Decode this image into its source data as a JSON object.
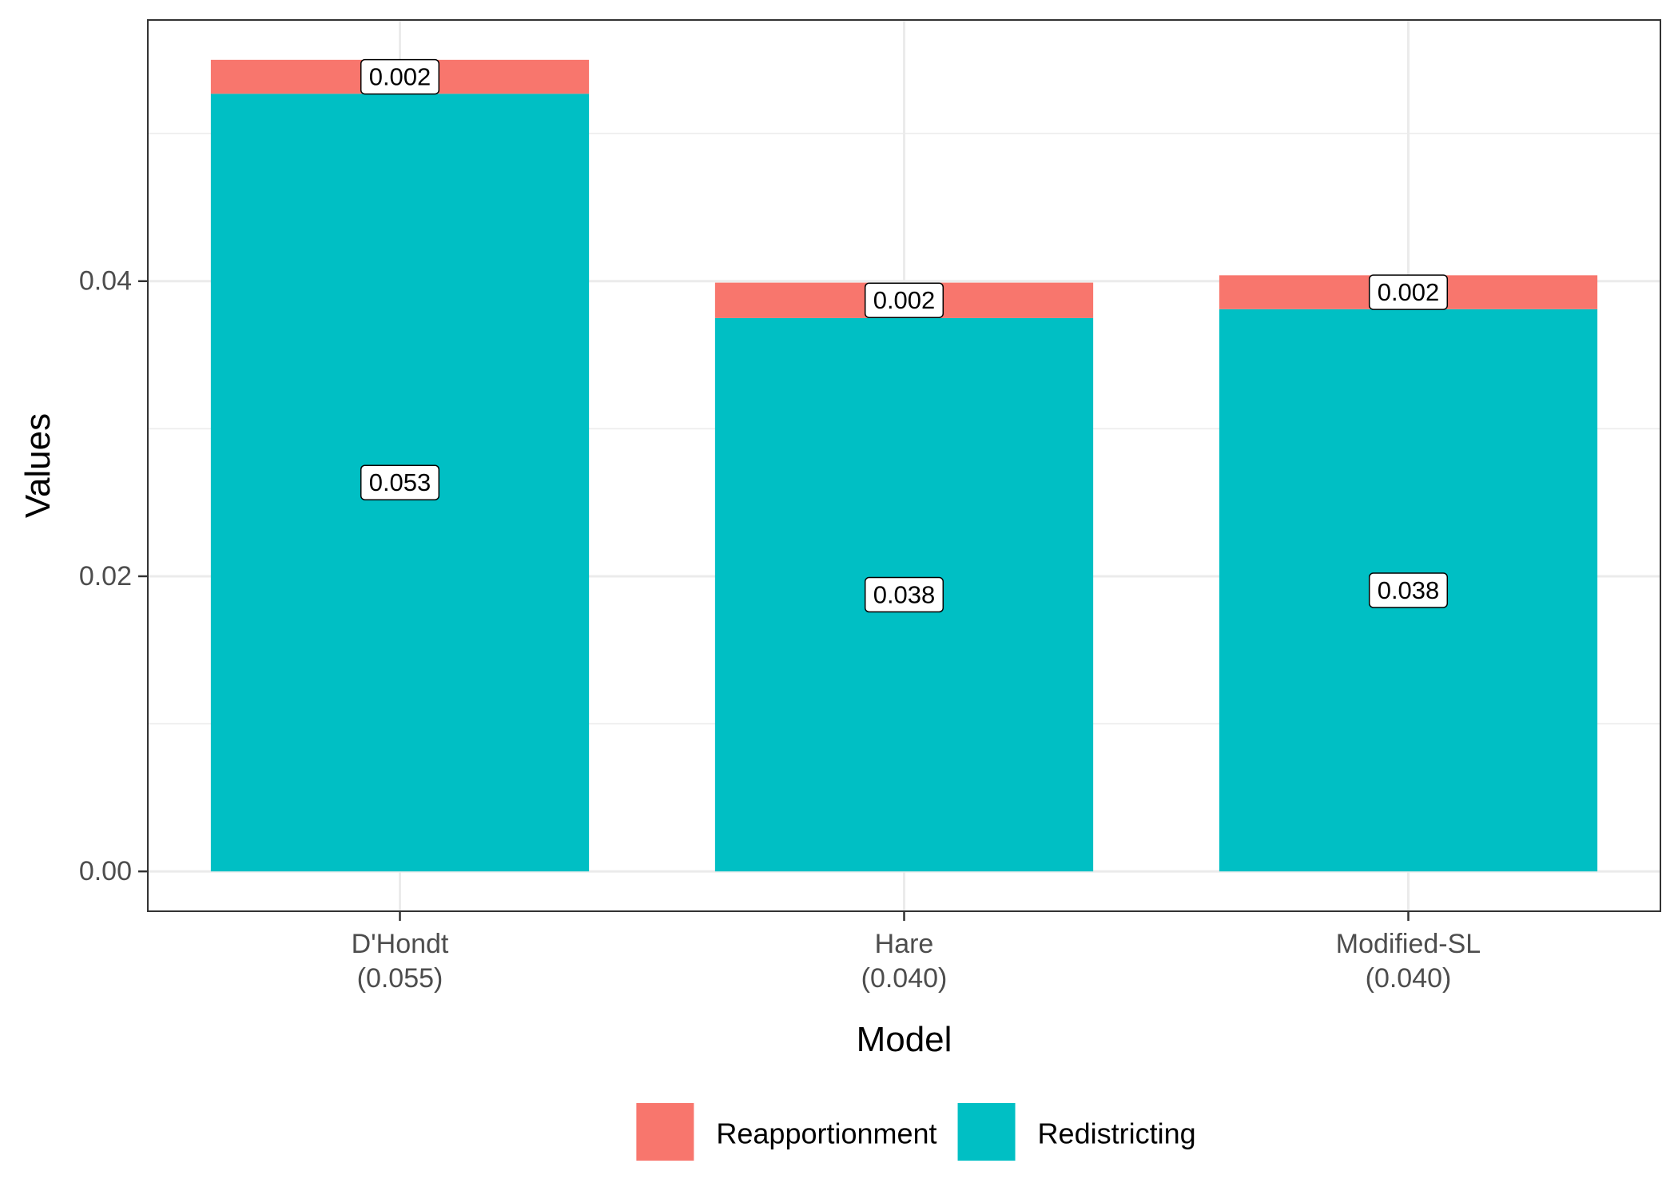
{
  "chart_data": {
    "type": "bar",
    "stacked": true,
    "title": "",
    "xlabel": "Model",
    "ylabel": "Values",
    "ylim": [
      -0.0027,
      0.0577
    ],
    "yticks": [
      0.0,
      0.02,
      0.04
    ],
    "ytick_labels": [
      "0.00",
      "0.02",
      "0.04"
    ],
    "grid": true,
    "legend_position": "bottom",
    "categories": [
      {
        "name": "D'Hondt",
        "total": "(0.055)"
      },
      {
        "name": "Hare",
        "total": "(0.040)"
      },
      {
        "name": "Modified-SL",
        "total": "(0.040)"
      }
    ],
    "series": [
      {
        "name": "Redistricting",
        "color": "#00BFC4",
        "values": [
          0.0527,
          0.0375,
          0.0381
        ],
        "labels": [
          "0.053",
          "0.038",
          "0.038"
        ]
      },
      {
        "name": "Reapportionment",
        "color": "#F8766D",
        "values": [
          0.0023,
          0.0024,
          0.0023
        ],
        "labels": [
          "0.002",
          "0.002",
          "0.002"
        ]
      }
    ],
    "legend": [
      {
        "name": "Reapportionment",
        "color": "#F8766D"
      },
      {
        "name": "Redistricting",
        "color": "#00BFC4"
      }
    ]
  }
}
